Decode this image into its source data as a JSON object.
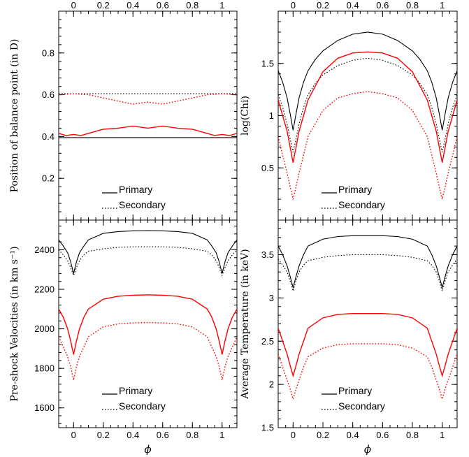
{
  "figure": {
    "x_axis_symbol": "ϕ",
    "top_x_ticks": [
      "0",
      "0.2",
      "0.4",
      "0.6",
      "0.8",
      "1"
    ]
  },
  "legend": {
    "primary": "Primary",
    "secondary": "Secondary"
  },
  "colors": {
    "model_a": "#000000",
    "model_b": "#ff0000"
  },
  "chart_data": [
    {
      "type": "line",
      "panel": "top-left",
      "xlabel": "",
      "ylabel": "Position of balance point (in D)",
      "xlim": [
        -0.1,
        1.1
      ],
      "ylim": [
        0.0,
        1.0
      ],
      "xticks": [
        "0",
        "0.2",
        "0.4",
        "0.6",
        "0.8",
        "1"
      ],
      "yticks": [
        "0.2",
        "0.4",
        "0.6",
        "0.8"
      ],
      "legend_position": "bottom-center",
      "series": [
        {
          "name": "Primary",
          "color": "#000000",
          "dash": "solid",
          "x": [
            -0.1,
            1.1
          ],
          "y": [
            0.395,
            0.395
          ]
        },
        {
          "name": "Secondary",
          "color": "#000000",
          "dash": "dotted",
          "x": [
            -0.1,
            1.1
          ],
          "y": [
            0.605,
            0.605
          ]
        },
        {
          "name": "Primary",
          "color": "#ff0000",
          "dash": "solid",
          "x": [
            -0.1,
            -0.05,
            0.0,
            0.05,
            0.1,
            0.2,
            0.3,
            0.4,
            0.5,
            0.6,
            0.7,
            0.8,
            0.9,
            0.95,
            1.0,
            1.05,
            1.1
          ],
          "y": [
            0.415,
            0.405,
            0.41,
            0.405,
            0.415,
            0.435,
            0.44,
            0.45,
            0.44,
            0.45,
            0.44,
            0.435,
            0.415,
            0.405,
            0.41,
            0.405,
            0.415
          ]
        },
        {
          "name": "Secondary",
          "color": "#ff0000",
          "dash": "dotted",
          "x": [
            -0.1,
            0.0,
            0.1,
            0.2,
            0.3,
            0.4,
            0.5,
            0.6,
            0.7,
            0.8,
            0.9,
            1.0,
            1.1
          ],
          "y": [
            0.6,
            0.605,
            0.6,
            0.585,
            0.57,
            0.555,
            0.565,
            0.555,
            0.57,
            0.585,
            0.6,
            0.605,
            0.6
          ]
        }
      ]
    },
    {
      "type": "line",
      "panel": "top-right",
      "xlabel": "",
      "ylabel": "log(Chi)",
      "xlim": [
        -0.1,
        1.1
      ],
      "ylim": [
        0.0,
        2.0
      ],
      "xticks": [
        "0",
        "0.2",
        "0.4",
        "0.6",
        "0.8",
        "1"
      ],
      "yticks": [
        "0.5",
        "1",
        "1.5"
      ],
      "legend_position": "bottom-center",
      "series": [
        {
          "name": "Primary",
          "color": "#000000",
          "dash": "solid",
          "x": [
            -0.1,
            -0.07,
            -0.04,
            -0.02,
            0.0,
            0.02,
            0.04,
            0.07,
            0.1,
            0.15,
            0.2,
            0.3,
            0.4,
            0.5,
            0.6,
            0.7,
            0.8,
            0.85,
            0.9,
            0.93,
            0.96,
            0.98,
            1.0,
            1.02,
            1.04,
            1.07,
            1.1
          ],
          "y": [
            1.43,
            1.32,
            1.17,
            1.02,
            0.86,
            1.02,
            1.17,
            1.32,
            1.43,
            1.54,
            1.62,
            1.72,
            1.78,
            1.8,
            1.78,
            1.72,
            1.62,
            1.54,
            1.43,
            1.32,
            1.17,
            1.02,
            0.86,
            1.02,
            1.17,
            1.32,
            1.43
          ]
        },
        {
          "name": "Secondary",
          "color": "#000000",
          "dash": "dotted",
          "x": [
            -0.1,
            -0.07,
            -0.04,
            -0.02,
            0.0,
            0.02,
            0.04,
            0.07,
            0.1,
            0.15,
            0.2,
            0.3,
            0.4,
            0.5,
            0.6,
            0.7,
            0.8,
            0.85,
            0.9,
            0.93,
            0.96,
            0.98,
            1.0,
            1.02,
            1.04,
            1.07,
            1.1
          ],
          "y": [
            1.2,
            1.08,
            0.92,
            0.78,
            0.65,
            0.78,
            0.92,
            1.08,
            1.2,
            1.31,
            1.39,
            1.48,
            1.53,
            1.55,
            1.53,
            1.48,
            1.39,
            1.31,
            1.2,
            1.08,
            0.92,
            0.78,
            0.65,
            0.78,
            0.92,
            1.08,
            1.2
          ]
        },
        {
          "name": "Primary",
          "color": "#ff0000",
          "dash": "solid",
          "x": [
            -0.1,
            -0.07,
            -0.04,
            -0.02,
            0.0,
            0.02,
            0.04,
            0.07,
            0.1,
            0.2,
            0.3,
            0.4,
            0.5,
            0.6,
            0.7,
            0.8,
            0.9,
            0.93,
            0.96,
            0.98,
            1.0,
            1.02,
            1.04,
            1.07,
            1.1
          ],
          "y": [
            1.15,
            1.0,
            0.85,
            0.7,
            0.55,
            0.7,
            0.85,
            1.0,
            1.15,
            1.42,
            1.55,
            1.6,
            1.61,
            1.6,
            1.55,
            1.42,
            1.15,
            1.0,
            0.85,
            0.7,
            0.55,
            0.7,
            0.85,
            1.0,
            1.15
          ]
        },
        {
          "name": "Secondary",
          "color": "#ff0000",
          "dash": "dotted",
          "x": [
            -0.1,
            -0.07,
            -0.04,
            -0.02,
            0.0,
            0.02,
            0.04,
            0.07,
            0.1,
            0.2,
            0.3,
            0.4,
            0.5,
            0.6,
            0.7,
            0.8,
            0.9,
            0.93,
            0.96,
            0.98,
            1.0,
            1.02,
            1.04,
            1.07,
            1.1
          ],
          "y": [
            0.8,
            0.62,
            0.45,
            0.32,
            0.2,
            0.32,
            0.45,
            0.62,
            0.8,
            1.05,
            1.17,
            1.21,
            1.23,
            1.21,
            1.17,
            1.05,
            0.8,
            0.62,
            0.45,
            0.32,
            0.2,
            0.32,
            0.45,
            0.62,
            0.8
          ]
        }
      ]
    },
    {
      "type": "line",
      "panel": "bottom-left",
      "xlabel": "ϕ",
      "ylabel": "Pre-shock Velocities (in km s⁻¹)",
      "xlim": [
        -0.1,
        1.1
      ],
      "ylim": [
        1500,
        2550
      ],
      "xticks": [
        "0",
        "0.2",
        "0.4",
        "0.6",
        "0.8",
        "1"
      ],
      "yticks": [
        "1600",
        "1800",
        "2000",
        "2200",
        "2400"
      ],
      "legend_position": "bottom-center",
      "series": [
        {
          "name": "Primary",
          "color": "#000000",
          "dash": "solid",
          "x": [
            -0.1,
            -0.07,
            -0.04,
            -0.02,
            0.0,
            0.02,
            0.04,
            0.07,
            0.1,
            0.2,
            0.3,
            0.4,
            0.5,
            0.6,
            0.7,
            0.8,
            0.9,
            0.93,
            0.96,
            0.98,
            1.0,
            1.02,
            1.04,
            1.07,
            1.1
          ],
          "y": [
            2450,
            2420,
            2385,
            2340,
            2280,
            2340,
            2385,
            2420,
            2450,
            2483,
            2492,
            2496,
            2497,
            2496,
            2492,
            2483,
            2450,
            2420,
            2385,
            2340,
            2280,
            2340,
            2385,
            2420,
            2450
          ]
        },
        {
          "name": "Secondary",
          "color": "#000000",
          "dash": "dotted",
          "x": [
            -0.1,
            -0.07,
            -0.04,
            -0.02,
            0.0,
            0.02,
            0.04,
            0.07,
            0.1,
            0.2,
            0.3,
            0.4,
            0.5,
            0.6,
            0.7,
            0.8,
            0.9,
            0.93,
            0.96,
            0.98,
            1.0,
            1.02,
            1.04,
            1.07,
            1.1
          ],
          "y": [
            2400,
            2375,
            2345,
            2310,
            2270,
            2310,
            2345,
            2375,
            2392,
            2405,
            2412,
            2415,
            2415,
            2415,
            2412,
            2405,
            2392,
            2375,
            2345,
            2310,
            2270,
            2310,
            2345,
            2375,
            2400
          ]
        },
        {
          "name": "Primary",
          "color": "#ff0000",
          "dash": "solid",
          "x": [
            -0.1,
            -0.07,
            -0.04,
            -0.02,
            0.0,
            0.02,
            0.04,
            0.07,
            0.1,
            0.2,
            0.3,
            0.4,
            0.5,
            0.6,
            0.7,
            0.8,
            0.9,
            0.93,
            0.96,
            0.98,
            1.0,
            1.02,
            1.04,
            1.07,
            1.1
          ],
          "y": [
            2100,
            2060,
            2000,
            1940,
            1870,
            1940,
            2000,
            2060,
            2100,
            2150,
            2165,
            2170,
            2172,
            2170,
            2165,
            2150,
            2100,
            2060,
            2000,
            1940,
            1870,
            1940,
            2000,
            2060,
            2100
          ]
        },
        {
          "name": "Secondary",
          "color": "#ff0000",
          "dash": "dotted",
          "x": [
            -0.1,
            -0.07,
            -0.04,
            -0.02,
            0.0,
            0.02,
            0.04,
            0.07,
            0.1,
            0.2,
            0.3,
            0.4,
            0.5,
            0.6,
            0.7,
            0.8,
            0.9,
            0.93,
            0.96,
            0.98,
            1.0,
            1.02,
            1.04,
            1.07,
            1.1
          ],
          "y": [
            1960,
            1910,
            1860,
            1810,
            1740,
            1810,
            1860,
            1910,
            1960,
            2010,
            2025,
            2030,
            2032,
            2030,
            2025,
            2010,
            1960,
            1910,
            1860,
            1810,
            1740,
            1810,
            1860,
            1910,
            1960
          ]
        }
      ]
    },
    {
      "type": "line",
      "panel": "bottom-right",
      "xlabel": "ϕ",
      "ylabel": "Average Temperature (in keV)",
      "xlim": [
        -0.1,
        1.1
      ],
      "ylim": [
        1.5,
        3.9
      ],
      "xticks": [
        "0",
        "0.2",
        "0.4",
        "0.6",
        "0.8",
        "1"
      ],
      "yticks": [
        "1.5",
        "2",
        "2.5",
        "3",
        "3.5"
      ],
      "legend_position": "bottom-center",
      "series": [
        {
          "name": "Primary",
          "color": "#000000",
          "dash": "solid",
          "x": [
            -0.1,
            -0.07,
            -0.04,
            -0.02,
            0.0,
            0.02,
            0.04,
            0.07,
            0.1,
            0.2,
            0.3,
            0.4,
            0.5,
            0.6,
            0.7,
            0.8,
            0.9,
            0.93,
            0.96,
            0.98,
            1.0,
            1.02,
            1.04,
            1.07,
            1.1
          ],
          "y": [
            3.6,
            3.5,
            3.37,
            3.25,
            3.12,
            3.25,
            3.37,
            3.5,
            3.6,
            3.68,
            3.71,
            3.72,
            3.72,
            3.72,
            3.71,
            3.68,
            3.6,
            3.5,
            3.37,
            3.25,
            3.12,
            3.25,
            3.37,
            3.5,
            3.6
          ]
        },
        {
          "name": "Secondary",
          "color": "#000000",
          "dash": "dotted",
          "x": [
            -0.1,
            -0.07,
            -0.04,
            -0.02,
            0.0,
            0.02,
            0.04,
            0.07,
            0.1,
            0.2,
            0.3,
            0.4,
            0.5,
            0.6,
            0.7,
            0.8,
            0.9,
            0.93,
            0.96,
            0.98,
            1.0,
            1.02,
            1.04,
            1.07,
            1.1
          ],
          "y": [
            3.45,
            3.38,
            3.3,
            3.2,
            3.08,
            3.2,
            3.3,
            3.38,
            3.43,
            3.47,
            3.49,
            3.5,
            3.5,
            3.5,
            3.49,
            3.47,
            3.43,
            3.38,
            3.3,
            3.2,
            3.08,
            3.2,
            3.3,
            3.38,
            3.45
          ]
        },
        {
          "name": "Primary",
          "color": "#ff0000",
          "dash": "solid",
          "x": [
            -0.1,
            -0.07,
            -0.04,
            -0.02,
            0.0,
            0.02,
            0.04,
            0.07,
            0.1,
            0.2,
            0.3,
            0.4,
            0.5,
            0.6,
            0.7,
            0.8,
            0.9,
            0.93,
            0.96,
            0.98,
            1.0,
            1.02,
            1.04,
            1.07,
            1.1
          ],
          "y": [
            2.65,
            2.5,
            2.35,
            2.22,
            2.1,
            2.22,
            2.35,
            2.5,
            2.65,
            2.77,
            2.81,
            2.82,
            2.82,
            2.82,
            2.81,
            2.77,
            2.65,
            2.5,
            2.35,
            2.22,
            2.1,
            2.22,
            2.35,
            2.5,
            2.65
          ]
        },
        {
          "name": "Secondary",
          "color": "#ff0000",
          "dash": "dotted",
          "x": [
            -0.1,
            -0.07,
            -0.04,
            -0.02,
            0.0,
            0.02,
            0.04,
            0.07,
            0.1,
            0.2,
            0.3,
            0.4,
            0.5,
            0.6,
            0.7,
            0.8,
            0.9,
            0.93,
            0.96,
            0.98,
            1.0,
            1.02,
            1.04,
            1.07,
            1.1
          ],
          "y": [
            2.35,
            2.2,
            2.05,
            1.95,
            1.83,
            1.95,
            2.05,
            2.2,
            2.32,
            2.42,
            2.46,
            2.47,
            2.47,
            2.47,
            2.46,
            2.42,
            2.32,
            2.2,
            2.05,
            1.95,
            1.83,
            1.95,
            2.05,
            2.2,
            2.35
          ]
        }
      ]
    }
  ]
}
